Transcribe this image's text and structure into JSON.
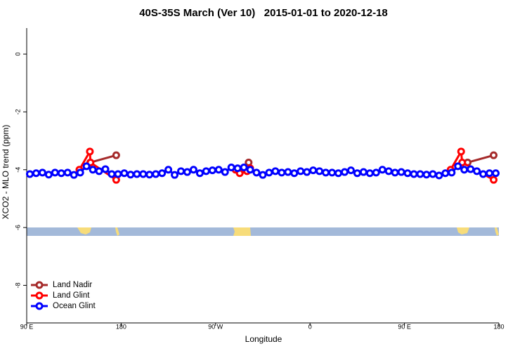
{
  "chart_data": {
    "type": "line",
    "title": "40S-35S March (Ver 10)   2015-01-01 to 2020-12-18",
    "x_label": "Longitude",
    "y_label": "XCO2 - MLO trend (ppm)",
    "xlim": [
      90,
      540
    ],
    "xticks": [
      {
        "value": 90,
        "label": "90 E"
      },
      180,
      {
        "value": 270,
        "label": "90 W"
      },
      {
        "value": 360,
        "label": "0"
      },
      {
        "value": 450,
        "label": "90 E"
      },
      {
        "value": 540,
        "label": "180"
      }
    ],
    "ylim": [
      -9.3,
      0.9
    ],
    "yticks": [
      0,
      -2,
      -4,
      -6,
      -8
    ],
    "legend": "bottom-left",
    "series": [
      {
        "name": "Land Nadir",
        "color": "#a52a2a",
        "x": [
          150.5,
          175.3,
          null,
          301.5,
          null,
          510.2,
          535
        ],
        "values": [
          -3.75,
          -3.5,
          null,
          -3.75,
          null,
          -3.75,
          -3.5
        ]
      },
      {
        "name": "Land Glint",
        "color": "#ff0000",
        "x": [
          140.2,
          150.2,
          150.8,
          175.3,
          null,
          289,
          293,
          297,
          300,
          303,
          null,
          494,
          504,
          505,
          535
        ],
        "values": [
          -4.0,
          -3.37,
          -3.75,
          -4.35,
          null,
          -4.0,
          -4.12,
          -4.0,
          -4.05,
          -3.95,
          null,
          -4.0,
          -3.37,
          -3.75,
          -4.35
        ]
      },
      {
        "name": "Ocean Glint",
        "color": "#0000ff",
        "x": [
          93,
          99,
          105,
          111,
          117,
          123,
          129,
          135,
          141,
          147,
          153,
          159,
          165,
          171,
          177,
          183,
          189,
          195,
          201,
          207,
          213,
          219,
          225,
          231,
          237,
          243,
          249,
          255,
          261,
          267,
          273,
          279,
          285,
          291,
          297,
          303,
          309,
          315,
          321,
          327,
          333,
          339,
          345,
          351,
          357,
          363,
          369,
          375,
          381,
          387,
          393,
          399,
          405,
          411,
          417,
          423,
          429,
          435,
          441,
          447,
          453,
          459,
          465,
          471,
          477,
          483,
          489,
          495,
          501,
          507,
          513,
          519,
          525,
          531,
          537
        ],
        "values": [
          -4.15,
          -4.12,
          -4.1,
          -4.17,
          -4.1,
          -4.12,
          -4.1,
          -4.18,
          -4.1,
          -3.88,
          -4.0,
          -4.05,
          -3.98,
          -4.15,
          -4.15,
          -4.12,
          -4.17,
          -4.15,
          -4.15,
          -4.17,
          -4.15,
          -4.12,
          -4.0,
          -4.18,
          -4.05,
          -4.08,
          -4.0,
          -4.12,
          -4.05,
          -4.02,
          -4.0,
          -4.08,
          -3.92,
          -3.95,
          -3.92,
          -4.0,
          -4.1,
          -4.18,
          -4.1,
          -4.05,
          -4.1,
          -4.08,
          -4.12,
          -4.05,
          -4.08,
          -4.02,
          -4.05,
          -4.1,
          -4.1,
          -4.12,
          -4.08,
          -4.02,
          -4.12,
          -4.08,
          -4.12,
          -4.1,
          -4.0,
          -4.05,
          -4.1,
          -4.08,
          -4.12,
          -4.15,
          -4.15,
          -4.17,
          -4.15,
          -4.2,
          -4.12,
          -4.1,
          -3.88,
          -4.0,
          -3.98,
          -4.05,
          -4.15,
          -4.12,
          -4.12
        ]
      }
    ]
  }
}
